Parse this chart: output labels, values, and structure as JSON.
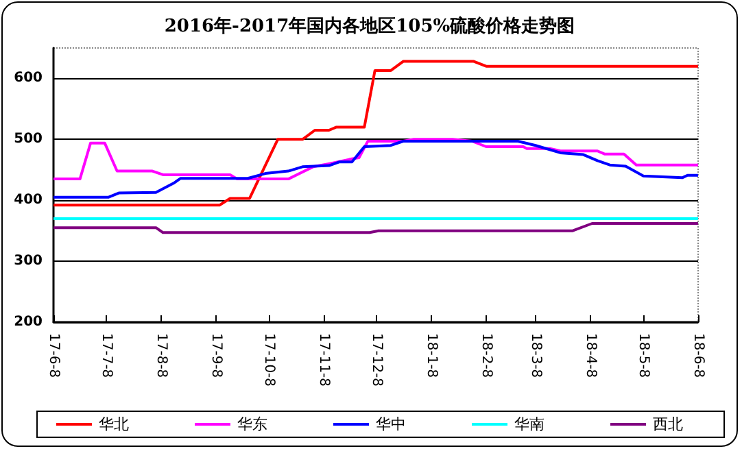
{
  "chart_data": {
    "type": "line",
    "title": "2016年-2017年国内各地区105%硫酸价格走势图",
    "xlim": [
      "2017-06-08",
      "2018-06-08"
    ],
    "xticks": [
      {
        "value": "2017-06-08",
        "label": "17-6-8"
      },
      {
        "value": "2017-07-08",
        "label": "17-7-8"
      },
      {
        "value": "2017-08-08",
        "label": "17-8-8"
      },
      {
        "value": "2017-09-08",
        "label": "17-9-8"
      },
      {
        "value": "2017-10-08",
        "label": "17-10-8"
      },
      {
        "value": "2017-11-08",
        "label": "17-11-8"
      },
      {
        "value": "2017-12-08",
        "label": "17-12-8"
      },
      {
        "value": "2018-01-08",
        "label": "18-1-8"
      },
      {
        "value": "2018-02-08",
        "label": "18-2-8"
      },
      {
        "value": "2018-03-08",
        "label": "18-3-8"
      },
      {
        "value": "2018-04-08",
        "label": "18-4-8"
      },
      {
        "value": "2018-05-08",
        "label": "18-5-8"
      },
      {
        "value": "2018-06-08",
        "label": "18-6-8"
      }
    ],
    "ylim": [
      200,
      650
    ],
    "yticks": [
      200,
      300,
      400,
      500,
      600
    ],
    "grid": "y",
    "legend": "bottom",
    "marker": "none",
    "line_style": "solid",
    "series": [
      {
        "name": "华北",
        "color": "#ff0000",
        "x": [
          "2017-06-08",
          "2017-09-10",
          "2017-09-16",
          "2017-09-27",
          "2017-10-13",
          "2017-10-27",
          "2017-11-03",
          "2017-11-11",
          "2017-11-15",
          "2017-12-01",
          "2017-12-07",
          "2017-12-16",
          "2017-12-23",
          "2018-02-01",
          "2018-02-08",
          "2018-06-08"
        ],
        "values": [
          392,
          392,
          403,
          403,
          500,
          500,
          515,
          515,
          520,
          520,
          613,
          613,
          628,
          628,
          620,
          620
        ]
      },
      {
        "name": "华东",
        "color": "#ff00ff",
        "x": [
          "2017-06-08",
          "2017-06-23",
          "2017-06-29",
          "2017-07-07",
          "2017-07-14",
          "2017-08-03",
          "2017-08-09",
          "2017-09-16",
          "2017-09-20",
          "2017-10-19",
          "2017-11-02",
          "2017-11-11",
          "2017-11-24",
          "2017-11-28",
          "2017-12-03",
          "2017-12-23",
          "2017-12-29",
          "2018-01-20",
          "2018-01-31",
          "2018-02-08",
          "2018-03-01",
          "2018-03-03",
          "2018-03-16",
          "2018-03-22",
          "2018-04-12",
          "2018-04-16",
          "2018-04-27",
          "2018-05-04",
          "2018-06-08"
        ],
        "values": [
          435,
          435,
          494,
          494,
          448,
          448,
          442,
          442,
          435,
          435,
          455,
          460,
          468,
          470,
          497,
          497,
          500,
          500,
          497,
          488,
          488,
          485,
          485,
          481,
          481,
          476,
          476,
          458,
          458
        ]
      },
      {
        "name": "华中",
        "color": "#0000ff",
        "x": [
          "2017-06-08",
          "2017-07-09",
          "2017-07-15",
          "2017-08-05",
          "2017-08-15",
          "2017-08-19",
          "2017-09-26",
          "2017-10-06",
          "2017-10-19",
          "2017-10-27",
          "2017-11-11",
          "2017-11-17",
          "2017-11-24",
          "2017-12-01",
          "2017-12-16",
          "2017-12-23",
          "2018-02-26",
          "2018-03-08",
          "2018-03-22",
          "2018-04-04",
          "2018-04-12",
          "2018-04-19",
          "2018-04-28",
          "2018-05-08",
          "2018-05-30",
          "2018-06-02",
          "2018-06-08"
        ],
        "values": [
          405,
          405,
          412,
          413,
          428,
          436,
          436,
          444,
          448,
          455,
          457,
          463,
          463,
          488,
          490,
          497,
          497,
          490,
          478,
          475,
          465,
          458,
          456,
          440,
          437,
          441,
          441
        ]
      },
      {
        "name": "华南",
        "color": "#00ffff",
        "x": [
          "2017-06-08",
          "2018-06-08"
        ],
        "values": [
          370,
          370
        ]
      },
      {
        "name": "西北",
        "color": "#800080",
        "x": [
          "2017-06-08",
          "2017-08-05",
          "2017-08-09",
          "2017-12-04",
          "2017-12-09",
          "2018-03-29",
          "2018-04-09",
          "2018-06-08"
        ],
        "values": [
          355,
          355,
          347,
          347,
          350,
          350,
          362,
          362
        ]
      }
    ]
  }
}
